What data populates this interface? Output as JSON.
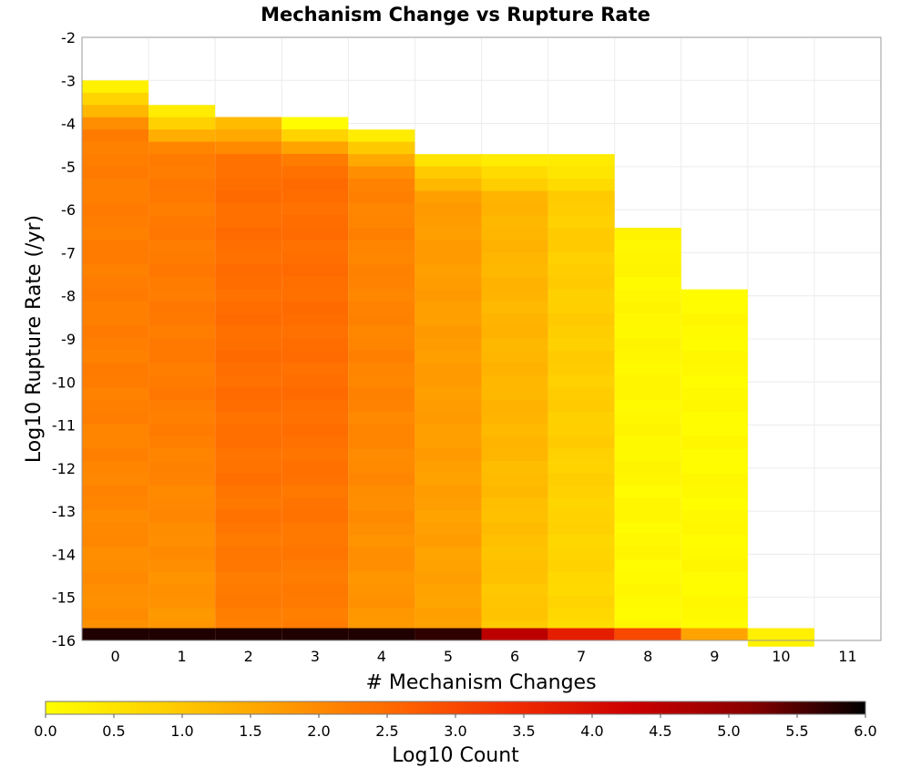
{
  "chart_data": {
    "type": "heatmap",
    "title": "Mechanism Change vs Rupture Rate",
    "xlabel": "# Mechanism Changes",
    "ylabel": "Log10 Rupture Rate (/yr)",
    "xlim": [
      -0.5,
      11.5
    ],
    "ylim": [
      -16,
      -2
    ],
    "x_ticks": [
      "0",
      "1",
      "2",
      "3",
      "4",
      "5",
      "6",
      "7",
      "8",
      "9",
      "10",
      "11"
    ],
    "y_ticks": [
      "-2",
      "-3",
      "-4",
      "-5",
      "-6",
      "-7",
      "-8",
      "-9",
      "-10",
      "-11",
      "-12",
      "-13",
      "-14",
      "-15",
      "-16"
    ],
    "grid": true,
    "bin_height": 0.285,
    "colorbar": {
      "label": "Log10 Count",
      "min": 0,
      "max": 6,
      "ticks": [
        "0.0",
        "0.5",
        "1.0",
        "1.5",
        "2.0",
        "2.5",
        "3.0",
        "3.5",
        "4.0",
        "4.5",
        "5.0",
        "5.5",
        "6.0"
      ],
      "colormap": [
        "#ffff00",
        "#ffd000",
        "#ff9c00",
        "#ff6600",
        "#f22c00",
        "#cc0000",
        "#8a0000",
        "#000000"
      ]
    },
    "columns": [
      {
        "x": 0,
        "y_top": -3.0,
        "count_top": 0.2,
        "count_mid": 2.2,
        "count_bottom": 1.9
      },
      {
        "x": 1,
        "y_top": -3.57,
        "count_top": 0.3,
        "count_mid": 2.25,
        "count_bottom": 1.8
      },
      {
        "x": 2,
        "y_top": -3.85,
        "count_top": 1.2,
        "count_mid": 2.45,
        "count_bottom": 2.2
      },
      {
        "x": 3,
        "y_top": -3.85,
        "count_top": 0.1,
        "count_mid": 2.45,
        "count_bottom": 2.2
      },
      {
        "x": 4,
        "y_top": -4.14,
        "count_top": 0.4,
        "count_mid": 2.1,
        "count_bottom": 1.8
      },
      {
        "x": 5,
        "y_top": -4.71,
        "count_top": 0.5,
        "count_mid": 1.7,
        "count_bottom": 1.6
      },
      {
        "x": 6,
        "y_top": -4.71,
        "count_top": 0.3,
        "count_mid": 1.3,
        "count_bottom": 1.0
      },
      {
        "x": 7,
        "y_top": -4.71,
        "count_top": 0.3,
        "count_mid": 0.9,
        "count_bottom": 0.7
      },
      {
        "x": 8,
        "y_top": -6.42,
        "count_top": 0.2,
        "count_mid": 0.15,
        "count_bottom": 0.1
      },
      {
        "x": 9,
        "y_top": -7.85,
        "count_top": 0.1,
        "count_mid": 0.1,
        "count_bottom": 0.1
      },
      {
        "x": 10,
        "y_top": -15.85,
        "count_top": 0.3,
        "count_mid": 0.3,
        "count_bottom": 0.3
      }
    ],
    "bottom_row": {
      "y": -16,
      "counts": [
        5.8,
        5.8,
        5.8,
        5.8,
        5.8,
        5.7,
        4.5,
        3.7,
        3.0,
        1.6,
        0.3,
        null
      ]
    }
  }
}
